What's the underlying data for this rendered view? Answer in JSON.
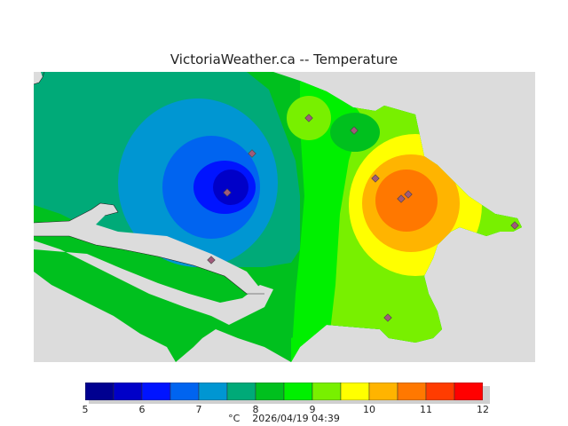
{
  "header": {
    "title": "VictoriaWeather.ca -- Temperature"
  },
  "legend": {
    "unit": "°C",
    "timestamp": "2026/04/19 04:39",
    "ticks": [
      "5",
      "6",
      "7",
      "8",
      "9",
      "10",
      "11",
      "12"
    ],
    "bins": [
      {
        "from": 5.0,
        "to": 5.5,
        "color": "#000090"
      },
      {
        "from": 5.5,
        "to": 6.0,
        "color": "#0000c8"
      },
      {
        "from": 6.0,
        "to": 6.5,
        "color": "#0014ff"
      },
      {
        "from": 6.5,
        "to": 7.0,
        "color": "#0064f0"
      },
      {
        "from": 7.0,
        "to": 7.5,
        "color": "#0096d2"
      },
      {
        "from": 7.5,
        "to": 8.0,
        "color": "#00aa78"
      },
      {
        "from": 8.0,
        "to": 8.5,
        "color": "#00c01e"
      },
      {
        "from": 8.5,
        "to": 9.0,
        "color": "#00f000"
      },
      {
        "from": 9.0,
        "to": 9.5,
        "color": "#78f000"
      },
      {
        "from": 9.5,
        "to": 10.0,
        "color": "#ffff00"
      },
      {
        "from": 10.0,
        "to": 10.5,
        "color": "#ffb400"
      },
      {
        "from": 10.5,
        "to": 11.0,
        "color": "#ff7800"
      },
      {
        "from": 11.0,
        "to": 11.5,
        "color": "#ff3c00"
      },
      {
        "from": 11.5,
        "to": 12.0,
        "color": "#ff0000"
      }
    ]
  },
  "map": {
    "background_color": "#dcdcdc",
    "station_icon": "diamond-icon",
    "station_color": "#a05a7a",
    "station_count": 10
  }
}
